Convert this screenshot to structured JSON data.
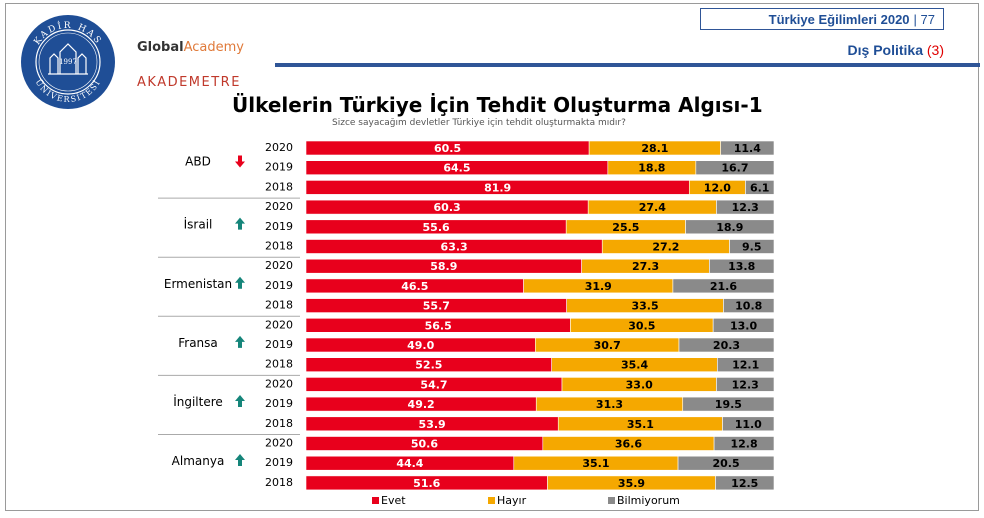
{
  "header": {
    "report_title": "Türkiye Eğilimleri 2020",
    "page_number": "77",
    "section_label": "Dış Politika",
    "section_number": "(3)",
    "logo_global": "Global",
    "logo_academy": "Academy",
    "logo_akademetre": "AKADEMETRE",
    "seal_year": "1997",
    "seal_top": "KADİR HAS",
    "seal_bottom": "ÜNİVERSİTESİ"
  },
  "colors": {
    "evet": "#e8001c",
    "hayir": "#f5a800",
    "bilmiyorum": "#8a8a8a",
    "arrow_down": "#e8001c",
    "arrow_up": "#15857a"
  },
  "chart_data": {
    "type": "bar",
    "stacked": true,
    "orientation": "horizontal",
    "title": "Ülkelerin Türkiye İçin Tehdit Oluşturma Algısı-1",
    "subtitle": "Sizce sayacağım devletler Türkiye için tehdit oluşturmakta mıdır?",
    "xlim": [
      0,
      100
    ],
    "legend_position": "bottom",
    "series": [
      {
        "name": "Evet",
        "color": "#e8001c"
      },
      {
        "name": "Hayır",
        "color": "#f5a800"
      },
      {
        "name": "Bilmiyorum",
        "color": "#8a8a8a"
      }
    ],
    "groups": [
      {
        "country": "ABD",
        "trend": "down",
        "rows": [
          {
            "year": "2020",
            "values": [
              60.5,
              28.1,
              11.4
            ]
          },
          {
            "year": "2019",
            "values": [
              64.5,
              18.8,
              16.7
            ]
          },
          {
            "year": "2018",
            "values": [
              81.9,
              12.0,
              6.1
            ]
          }
        ]
      },
      {
        "country": "İsrail",
        "trend": "up",
        "rows": [
          {
            "year": "2020",
            "values": [
              60.3,
              27.4,
              12.3
            ]
          },
          {
            "year": "2019",
            "values": [
              55.6,
              25.5,
              18.9
            ]
          },
          {
            "year": "2018",
            "values": [
              63.3,
              27.2,
              9.5
            ]
          }
        ]
      },
      {
        "country": "Ermenistan",
        "trend": "up",
        "rows": [
          {
            "year": "2020",
            "values": [
              58.9,
              27.3,
              13.8
            ]
          },
          {
            "year": "2019",
            "values": [
              46.5,
              31.9,
              21.6
            ]
          },
          {
            "year": "2018",
            "values": [
              55.7,
              33.5,
              10.8
            ]
          }
        ]
      },
      {
        "country": "Fransa",
        "trend": "up",
        "rows": [
          {
            "year": "2020",
            "values": [
              56.5,
              30.5,
              13.0
            ]
          },
          {
            "year": "2019",
            "values": [
              49.0,
              30.7,
              20.3
            ]
          },
          {
            "year": "2018",
            "values": [
              52.5,
              35.4,
              12.1
            ]
          }
        ]
      },
      {
        "country": "İngiltere",
        "trend": "up",
        "rows": [
          {
            "year": "2020",
            "values": [
              54.7,
              33.0,
              12.3
            ]
          },
          {
            "year": "2019",
            "values": [
              49.2,
              31.3,
              19.5
            ]
          },
          {
            "year": "2018",
            "values": [
              53.9,
              35.1,
              11.0
            ]
          }
        ]
      },
      {
        "country": "Almanya",
        "trend": "up",
        "rows": [
          {
            "year": "2020",
            "values": [
              50.6,
              36.6,
              12.8
            ]
          },
          {
            "year": "2019",
            "values": [
              44.4,
              35.1,
              20.5
            ]
          },
          {
            "year": "2018",
            "values": [
              51.6,
              35.9,
              12.5
            ]
          }
        ]
      }
    ]
  }
}
